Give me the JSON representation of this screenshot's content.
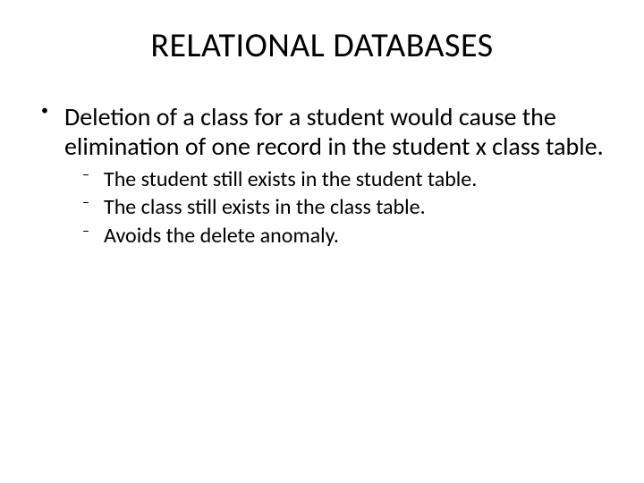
{
  "slide": {
    "background_color": "#ffffff",
    "text_color": "#000000",
    "title": {
      "text": "RELATIONAL DATABASES",
      "fontsize": 38,
      "weight": 400
    },
    "bullets": [
      {
        "text": "Deletion of a class for a student would cause the elimination of one record in the student x class table.",
        "fontsize": 28,
        "sub": [
          {
            "text": "The student still exists in the student table.",
            "fontsize": 24
          },
          {
            "text": "The class still exists in the class table.",
            "fontsize": 24
          },
          {
            "text": "Avoids the delete anomaly.",
            "fontsize": 24
          }
        ]
      }
    ]
  }
}
